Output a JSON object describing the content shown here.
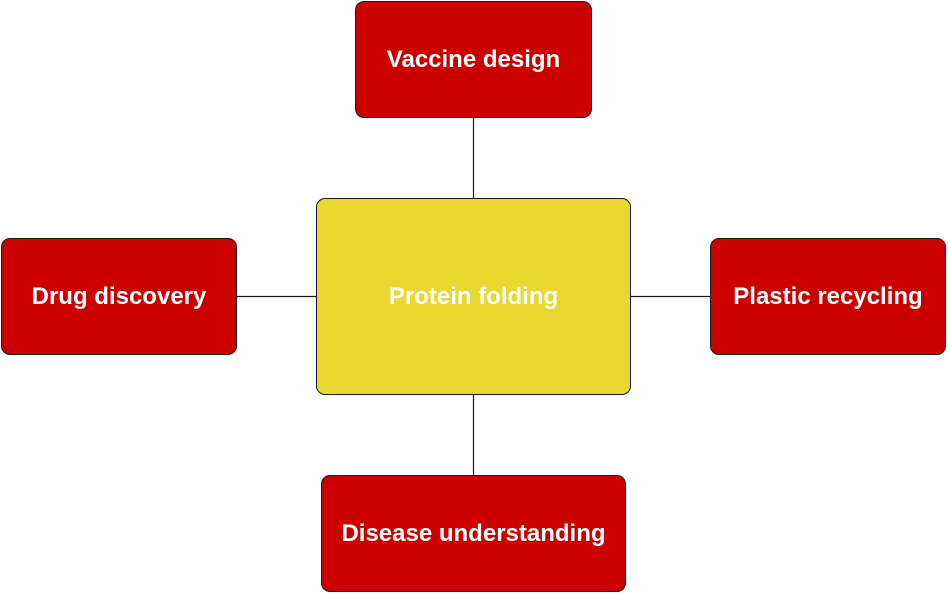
{
  "diagram": {
    "center": {
      "label": "Protein folding",
      "color": "#e8d830"
    },
    "branches": [
      {
        "id": "top",
        "label": "Vaccine design"
      },
      {
        "id": "left",
        "label": "Drug discovery"
      },
      {
        "id": "right",
        "label": "Plastic recycling"
      },
      {
        "id": "bottom",
        "label": "Disease understanding"
      }
    ],
    "branch_color": "#cc0000",
    "text_color": "#ffffff",
    "connector_color": "#1a1a1a"
  }
}
